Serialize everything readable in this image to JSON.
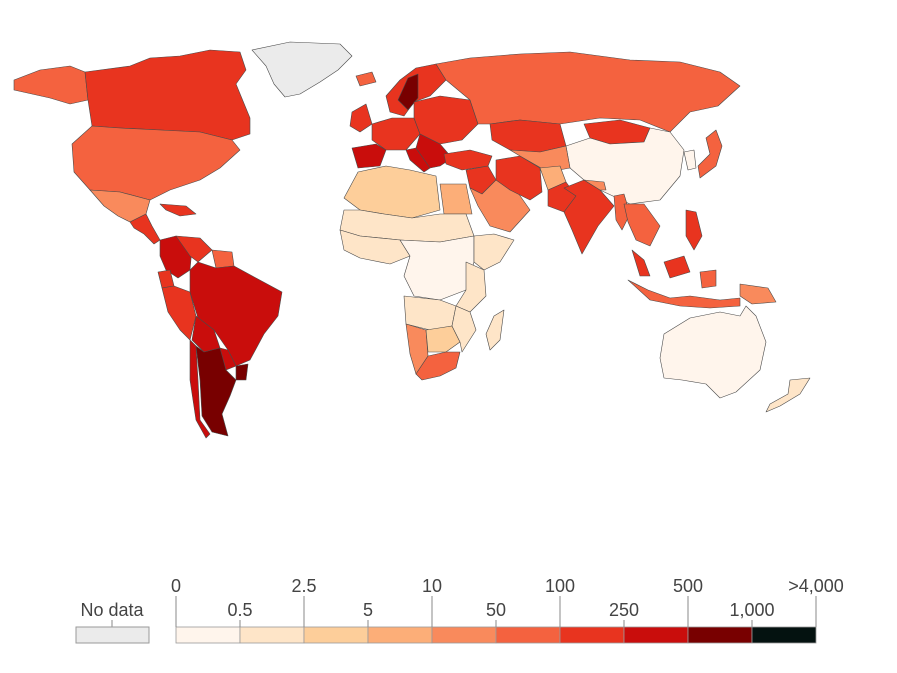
{
  "legend": {
    "no_data": {
      "label": "No data",
      "color": "#ebebeb"
    },
    "bins": [
      {
        "color": "#fff5ec"
      },
      {
        "color": "#fee5c8"
      },
      {
        "color": "#fdce9a"
      },
      {
        "color": "#fcae78"
      },
      {
        "color": "#f98a5c"
      },
      {
        "color": "#f4623f"
      },
      {
        "color": "#e8341f"
      },
      {
        "color": "#c90d0c"
      },
      {
        "color": "#780000"
      },
      {
        "color": "#041210"
      }
    ],
    "ticks_upper": [
      "0",
      "2.5",
      "10",
      "100",
      "500",
      ">4,000"
    ],
    "ticks_lower": [
      "0.5",
      "5",
      "50",
      "250",
      "1,000"
    ]
  },
  "regions": [
    {
      "name": "greenland",
      "bin": -1
    },
    {
      "name": "alaska",
      "bin": 5
    },
    {
      "name": "canada",
      "bin": 6
    },
    {
      "name": "usa",
      "bin": 5
    },
    {
      "name": "mexico",
      "bin": 4
    },
    {
      "name": "central-america",
      "bin": 6
    },
    {
      "name": "caribbean",
      "bin": 6
    },
    {
      "name": "colombia",
      "bin": 7
    },
    {
      "name": "venezuela",
      "bin": 6
    },
    {
      "name": "guianas",
      "bin": 5
    },
    {
      "name": "ecuador",
      "bin": 6
    },
    {
      "name": "peru",
      "bin": 6
    },
    {
      "name": "brazil",
      "bin": 7
    },
    {
      "name": "bolivia",
      "bin": 7
    },
    {
      "name": "paraguay",
      "bin": 7
    },
    {
      "name": "uruguay",
      "bin": 8
    },
    {
      "name": "chile",
      "bin": 7
    },
    {
      "name": "argentina",
      "bin": 8
    },
    {
      "name": "iceland",
      "bin": 5
    },
    {
      "name": "uk-ireland",
      "bin": 6
    },
    {
      "name": "scandinavia",
      "bin": 6
    },
    {
      "name": "sweden",
      "bin": 8
    },
    {
      "name": "western-europe",
      "bin": 6
    },
    {
      "name": "iberia",
      "bin": 7
    },
    {
      "name": "italy",
      "bin": 7
    },
    {
      "name": "eastern-europe",
      "bin": 6
    },
    {
      "name": "balkans",
      "bin": 7
    },
    {
      "name": "turkey",
      "bin": 6
    },
    {
      "name": "russia",
      "bin": 5
    },
    {
      "name": "kazakhstan",
      "bin": 6
    },
    {
      "name": "mongolia",
      "bin": 6
    },
    {
      "name": "china",
      "bin": 0
    },
    {
      "name": "korea",
      "bin": 0
    },
    {
      "name": "japan",
      "bin": 5
    },
    {
      "name": "middle-east",
      "bin": 6
    },
    {
      "name": "arabia",
      "bin": 4
    },
    {
      "name": "iran",
      "bin": 6
    },
    {
      "name": "central-asia",
      "bin": 4
    },
    {
      "name": "afghanistan",
      "bin": 3
    },
    {
      "name": "pakistan",
      "bin": 6
    },
    {
      "name": "india",
      "bin": 6
    },
    {
      "name": "nepal-bhutan",
      "bin": 4
    },
    {
      "name": "myanmar",
      "bin": 5
    },
    {
      "name": "indochina",
      "bin": 5
    },
    {
      "name": "malaysia",
      "bin": 6
    },
    {
      "name": "philippines",
      "bin": 6
    },
    {
      "name": "indonesia",
      "bin": 5
    },
    {
      "name": "png",
      "bin": 4
    },
    {
      "name": "australia",
      "bin": 0
    },
    {
      "name": "new-zealand",
      "bin": 1
    },
    {
      "name": "north-africa",
      "bin": 2
    },
    {
      "name": "egypt",
      "bin": 3
    },
    {
      "name": "sahel",
      "bin": 1
    },
    {
      "name": "west-africa",
      "bin": 1
    },
    {
      "name": "central-africa",
      "bin": 0
    },
    {
      "name": "horn-of-africa",
      "bin": 1
    },
    {
      "name": "east-africa",
      "bin": 1
    },
    {
      "name": "angola-zambia",
      "bin": 1
    },
    {
      "name": "namibia",
      "bin": 4
    },
    {
      "name": "botswana-zimbabwe",
      "bin": 2
    },
    {
      "name": "south-africa",
      "bin": 5
    },
    {
      "name": "mozambique",
      "bin": 1
    },
    {
      "name": "madagascar",
      "bin": 1
    }
  ]
}
